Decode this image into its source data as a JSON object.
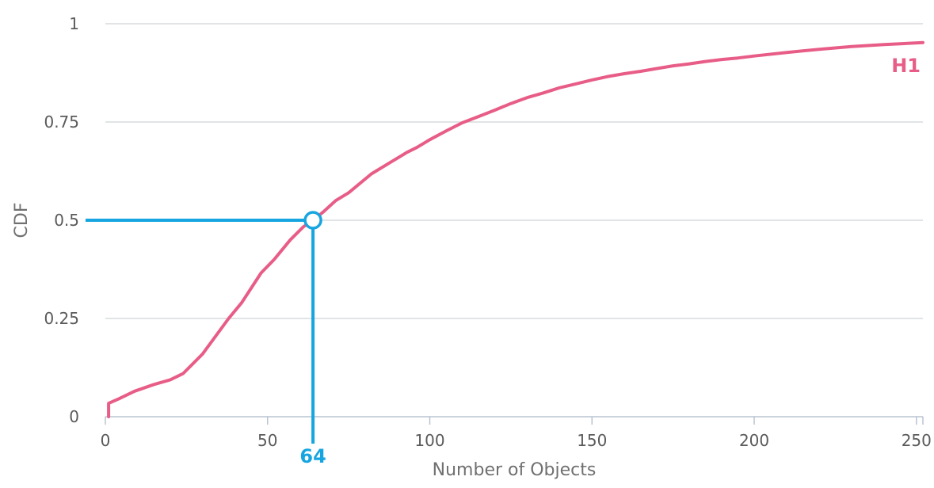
{
  "chart_data": {
    "type": "line",
    "xlabel": "Number of Objects",
    "ylabel": "CDF",
    "xlim": [
      0,
      252
    ],
    "ylim": [
      0,
      1
    ],
    "x_ticks": [
      0,
      50,
      100,
      150,
      200,
      250
    ],
    "y_ticks": [
      0,
      0.25,
      0.5,
      0.75,
      1
    ],
    "y_tick_labels": [
      "0",
      "0.25",
      "0.5",
      "0.75",
      "1"
    ],
    "grid": "horizontal",
    "legend": "none",
    "series": [
      {
        "name": "H1",
        "color": "#e85d87",
        "x": [
          1,
          1,
          4,
          9,
          15,
          20,
          24,
          30,
          38,
          42,
          48,
          52,
          57,
          61,
          64,
          67,
          71,
          75,
          82,
          88,
          93,
          96,
          100,
          105,
          110,
          115,
          120,
          125,
          130,
          135,
          140,
          145,
          150,
          155,
          160,
          165,
          170,
          175,
          180,
          185,
          190,
          195,
          200,
          210,
          220,
          230,
          240,
          252
        ],
        "y": [
          0,
          0.034,
          0.045,
          0.065,
          0.082,
          0.094,
          0.11,
          0.16,
          0.25,
          0.29,
          0.366,
          0.4,
          0.45,
          0.483,
          0.5,
          0.52,
          0.55,
          0.57,
          0.618,
          0.648,
          0.673,
          0.685,
          0.705,
          0.727,
          0.748,
          0.764,
          0.78,
          0.797,
          0.812,
          0.824,
          0.837,
          0.847,
          0.857,
          0.866,
          0.873,
          0.879,
          0.886,
          0.893,
          0.898,
          0.904,
          0.909,
          0.913,
          0.918,
          0.927,
          0.935,
          0.942,
          0.947,
          0.952
        ]
      }
    ],
    "annotations": [
      {
        "label": "64",
        "x": 64,
        "y": 0.5,
        "color": "#16a5e0"
      }
    ]
  }
}
